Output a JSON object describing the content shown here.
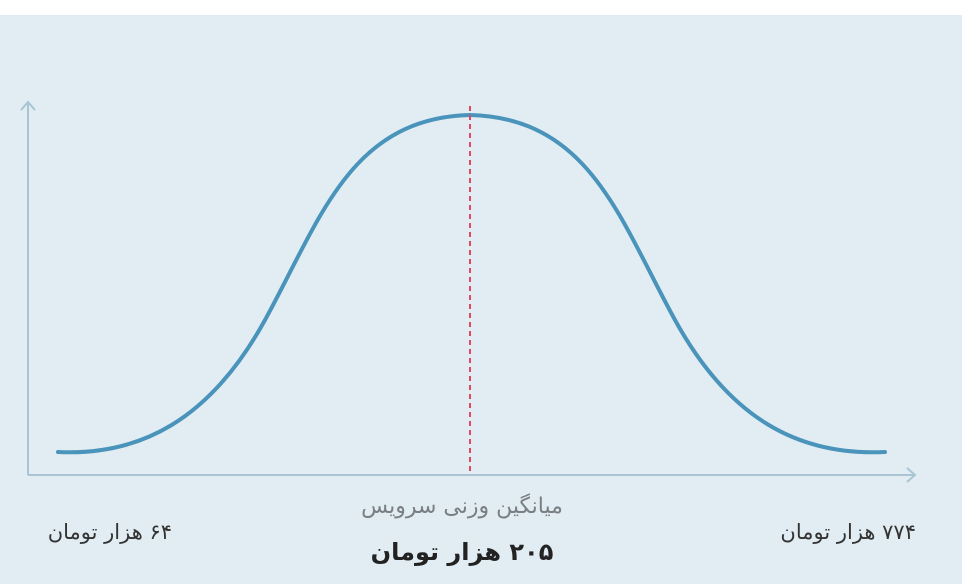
{
  "price_range": {
    "min_label": "۶۴ هزار تومان",
    "max_label": "۷۷۴ هزار تومان",
    "mean_caption": "میانگین وزنی سرویس",
    "mean_label": "۲۰۵ هزار تومان"
  }
}
